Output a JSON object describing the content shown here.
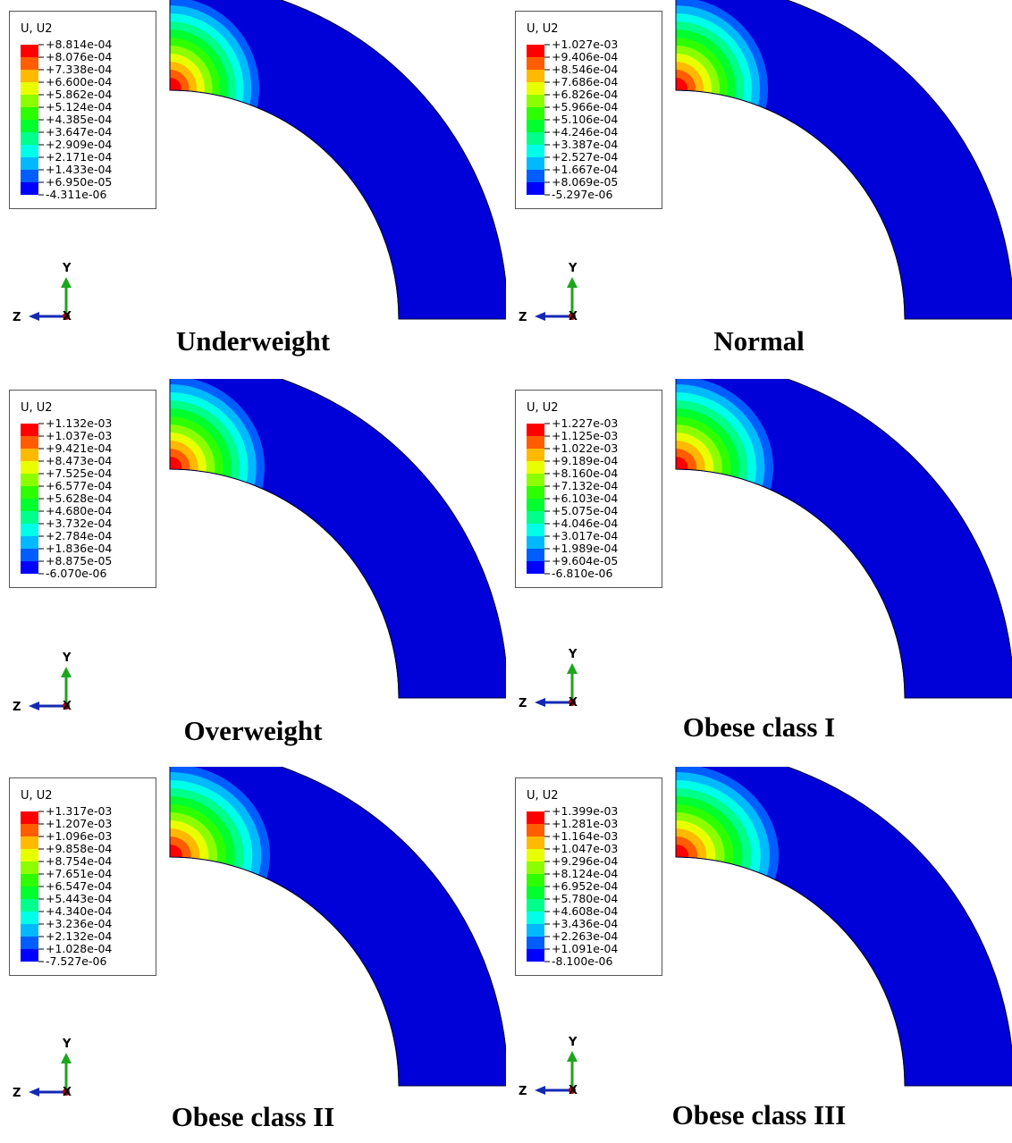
{
  "colors": {
    "field": "#0000d8",
    "scale": [
      "#0000ff",
      "#005dff",
      "#00b9ff",
      "#00ffe8",
      "#00ff8b",
      "#00ff2e",
      "#2eff00",
      "#8bff00",
      "#e8ff00",
      "#ffb900",
      "#ff5d00",
      "#ff0000"
    ],
    "arrow_y": "#1ea51e",
    "arrow_z": "#1428b4",
    "axis_x": "#b40000"
  },
  "axis_labels": {
    "y": "Y",
    "z": "Z",
    "x": "X"
  },
  "panels": [
    {
      "caption": "Underweight",
      "legend_title": "U, U2",
      "legend_values": [
        "+8.814e-04",
        "+8.076e-04",
        "+7.338e-04",
        "+6.600e-04",
        "+5.862e-04",
        "+5.124e-04",
        "+4.385e-04",
        "+3.647e-04",
        "+2.909e-04",
        "+2.171e-04",
        "+1.433e-04",
        "+6.950e-05",
        "-4.311e-06"
      ]
    },
    {
      "caption": "Normal",
      "legend_title": "U, U2",
      "legend_values": [
        "+1.027e-03",
        "+9.406e-04",
        "+8.546e-04",
        "+7.686e-04",
        "+6.826e-04",
        "+5.966e-04",
        "+5.106e-04",
        "+4.246e-04",
        "+3.387e-04",
        "+2.527e-04",
        "+1.667e-04",
        "+8.069e-05",
        "-5.297e-06"
      ]
    },
    {
      "caption": "Overweight",
      "legend_title": "U, U2",
      "legend_values": [
        "+1.132e-03",
        "+1.037e-03",
        "+9.421e-04",
        "+8.473e-04",
        "+7.525e-04",
        "+6.577e-04",
        "+5.628e-04",
        "+4.680e-04",
        "+3.732e-04",
        "+2.784e-04",
        "+1.836e-04",
        "+8.875e-05",
        "-6.070e-06"
      ]
    },
    {
      "caption": "Obese class I",
      "legend_title": "U, U2",
      "legend_values": [
        "+1.227e-03",
        "+1.125e-03",
        "+1.022e-03",
        "+9.189e-04",
        "+8.160e-04",
        "+7.132e-04",
        "+6.103e-04",
        "+5.075e-04",
        "+4.046e-04",
        "+3.017e-04",
        "+1.989e-04",
        "+9.604e-05",
        "-6.810e-06"
      ]
    },
    {
      "caption": "Obese class II",
      "legend_title": "U, U2",
      "legend_values": [
        "+1.317e-03",
        "+1.207e-03",
        "+1.096e-03",
        "+9.858e-04",
        "+8.754e-04",
        "+7.651e-04",
        "+6.547e-04",
        "+5.443e-04",
        "+4.340e-04",
        "+3.236e-04",
        "+2.132e-04",
        "+1.028e-04",
        "-7.527e-06"
      ]
    },
    {
      "caption": "Obese class III",
      "legend_title": "U, U2",
      "legend_values": [
        "+1.399e-03",
        "+1.281e-03",
        "+1.164e-03",
        "+1.047e-03",
        "+9.296e-04",
        "+8.124e-04",
        "+6.952e-04",
        "+5.780e-04",
        "+4.608e-04",
        "+3.436e-04",
        "+2.263e-04",
        "+1.091e-04",
        "-8.100e-06"
      ]
    }
  ]
}
